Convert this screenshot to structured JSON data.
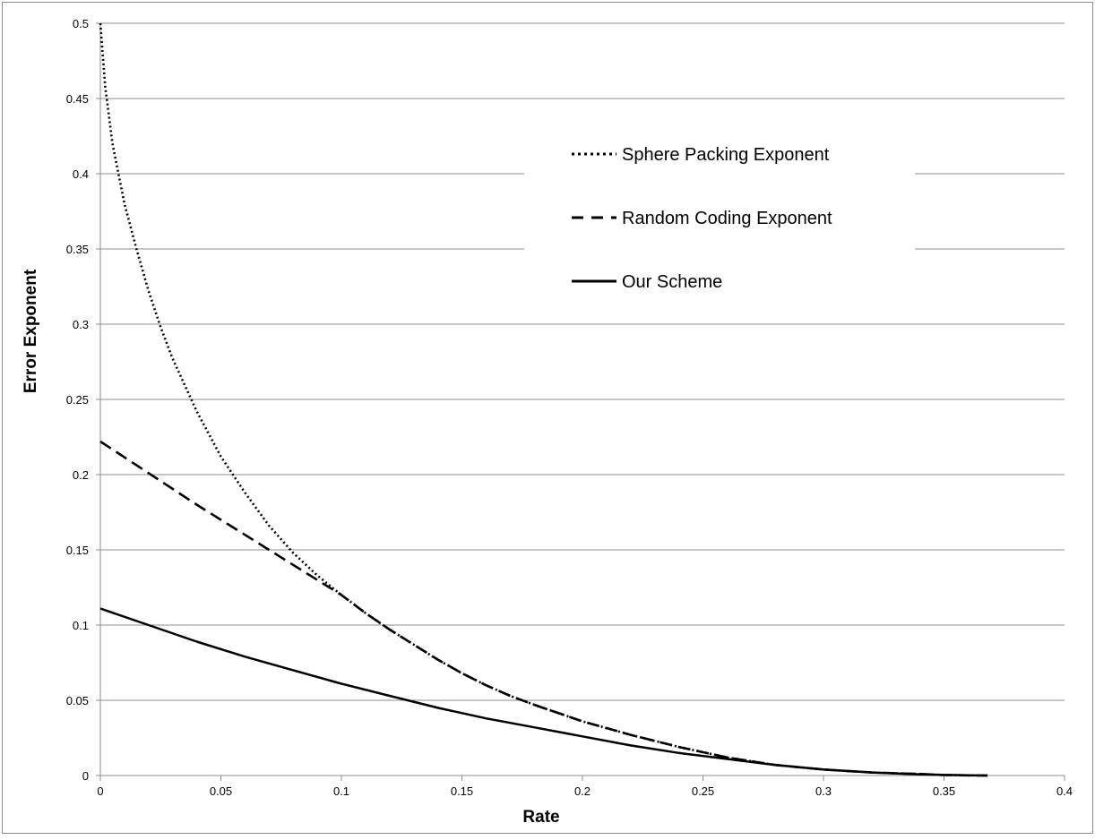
{
  "chart_data": {
    "type": "line",
    "title": "",
    "xlabel": "Rate",
    "ylabel": "Error Exponent",
    "xlim": [
      0,
      0.4
    ],
    "ylim": [
      0,
      0.5
    ],
    "x_ticks": [
      "0",
      "0.05",
      "0.1",
      "0.15",
      "0.2",
      "0.25",
      "0.3",
      "0.35",
      "0.4"
    ],
    "y_ticks": [
      "0",
      "0.05",
      "0.1",
      "0.15",
      "0.2",
      "0.25",
      "0.3",
      "0.35",
      "0.4",
      "0.45",
      "0.5"
    ],
    "grid": "horizontal",
    "legend_position": "top-right",
    "series": [
      {
        "name": "Sphere Packing Exponent",
        "style": "dotted",
        "color": "#000000",
        "x": [
          0,
          0.002,
          0.005,
          0.01,
          0.015,
          0.02,
          0.025,
          0.03,
          0.04,
          0.05,
          0.06,
          0.07,
          0.08,
          0.09,
          0.1,
          0.11,
          0.12,
          0.13,
          0.14,
          0.15,
          0.16,
          0.17,
          0.18,
          0.2,
          0.22,
          0.24,
          0.26,
          0.28,
          0.3,
          0.32,
          0.34,
          0.35,
          0.36,
          0.368
        ],
        "y": [
          0.5,
          0.458,
          0.42,
          0.38,
          0.35,
          0.322,
          0.298,
          0.277,
          0.242,
          0.212,
          0.188,
          0.166,
          0.148,
          0.133,
          0.12,
          0.108,
          0.097,
          0.087,
          0.077,
          0.068,
          0.06,
          0.053,
          0.047,
          0.036,
          0.027,
          0.019,
          0.012,
          0.007,
          0.004,
          0.002,
          0.001,
          0.0003,
          0.0001,
          0.0
        ]
      },
      {
        "name": "Random Coding Exponent",
        "style": "dashed",
        "color": "#000000",
        "x": [
          0,
          0.02,
          0.04,
          0.06,
          0.08,
          0.1,
          0.11,
          0.12,
          0.13,
          0.14,
          0.15,
          0.16,
          0.17,
          0.18,
          0.2,
          0.22,
          0.24,
          0.26,
          0.28,
          0.3,
          0.32,
          0.34,
          0.35,
          0.36,
          0.368
        ],
        "y": [
          0.222,
          0.201,
          0.18,
          0.16,
          0.14,
          0.12,
          0.108,
          0.097,
          0.087,
          0.077,
          0.068,
          0.06,
          0.053,
          0.047,
          0.036,
          0.027,
          0.019,
          0.012,
          0.007,
          0.004,
          0.002,
          0.001,
          0.0003,
          0.0001,
          0.0
        ]
      },
      {
        "name": "Our Scheme",
        "style": "solid",
        "color": "#000000",
        "x": [
          0,
          0.02,
          0.04,
          0.06,
          0.08,
          0.1,
          0.12,
          0.14,
          0.16,
          0.18,
          0.2,
          0.22,
          0.24,
          0.26,
          0.28,
          0.3,
          0.32,
          0.34,
          0.36,
          0.368
        ],
        "y": [
          0.111,
          0.1,
          0.089,
          0.079,
          0.07,
          0.061,
          0.053,
          0.045,
          0.038,
          0.032,
          0.026,
          0.02,
          0.015,
          0.011,
          0.007,
          0.004,
          0.002,
          0.0008,
          0.0002,
          0.0
        ]
      }
    ]
  }
}
